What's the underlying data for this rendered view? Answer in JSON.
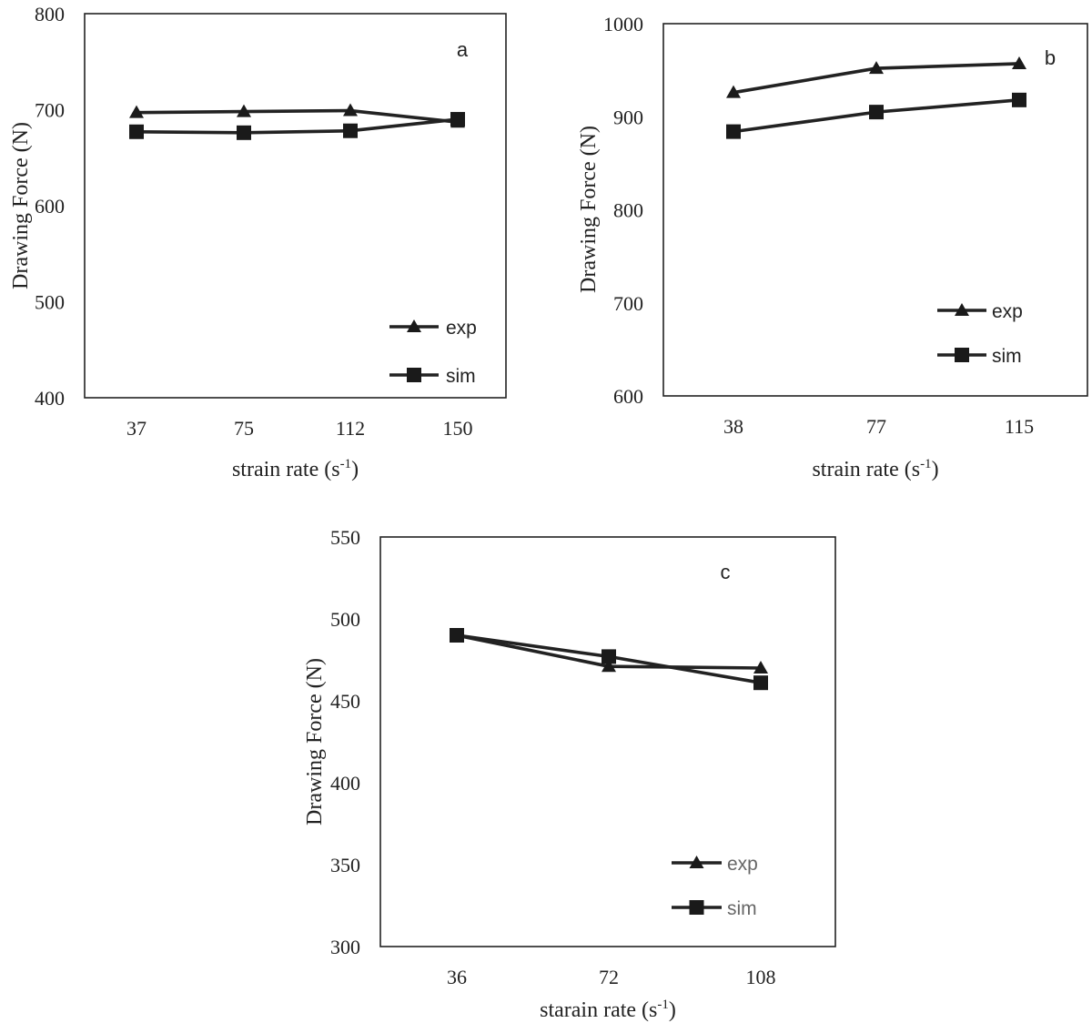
{
  "chart_data": [
    {
      "type": "line",
      "panel_label": "a",
      "categories": [
        "37",
        "75",
        "112",
        "150"
      ],
      "ylim": [
        400,
        800
      ],
      "yticks": [
        "400",
        "500",
        "600",
        "700",
        "800"
      ],
      "ylabel": "Drawing Force (N)",
      "xlabel_main": "strain rate (s",
      "xlabel_sup": "-1",
      "xlabel_end": ")",
      "legend_position": "bottom-right",
      "series": [
        {
          "name": "exp",
          "marker": "triangle",
          "values": [
            697,
            698,
            699,
            687
          ]
        },
        {
          "name": "sim",
          "marker": "square",
          "values": [
            677,
            676,
            678,
            690
          ]
        }
      ]
    },
    {
      "type": "line",
      "panel_label": "b",
      "categories": [
        "38",
        "77",
        "115"
      ],
      "ylim": [
        600,
        1000
      ],
      "yticks": [
        "600",
        "700",
        "800",
        "900",
        "1000"
      ],
      "ylabel": "Drawing Force (N)",
      "xlabel_main": "strain rate (s",
      "xlabel_sup": "-1",
      "xlabel_end": ")",
      "legend_position": "bottom-right",
      "series": [
        {
          "name": "exp",
          "marker": "triangle",
          "values": [
            926,
            952,
            957
          ]
        },
        {
          "name": "sim",
          "marker": "square",
          "values": [
            884,
            905,
            918
          ]
        }
      ]
    },
    {
      "type": "line",
      "panel_label": "c",
      "categories": [
        "36",
        "72",
        "108"
      ],
      "ylim": [
        300,
        550
      ],
      "yticks": [
        "300",
        "350",
        "400",
        "450",
        "500",
        "550"
      ],
      "ylabel": "Drawing Force (N)",
      "xlabel_main": "starain rate (s",
      "xlabel_sup": "-1",
      "xlabel_end": ")",
      "legend_position": "bottom-right",
      "legend_text_color": "#666666",
      "series": [
        {
          "name": "exp",
          "marker": "triangle",
          "values": [
            490,
            471,
            470
          ]
        },
        {
          "name": "sim",
          "marker": "square",
          "values": [
            490,
            477,
            461
          ]
        }
      ]
    }
  ]
}
